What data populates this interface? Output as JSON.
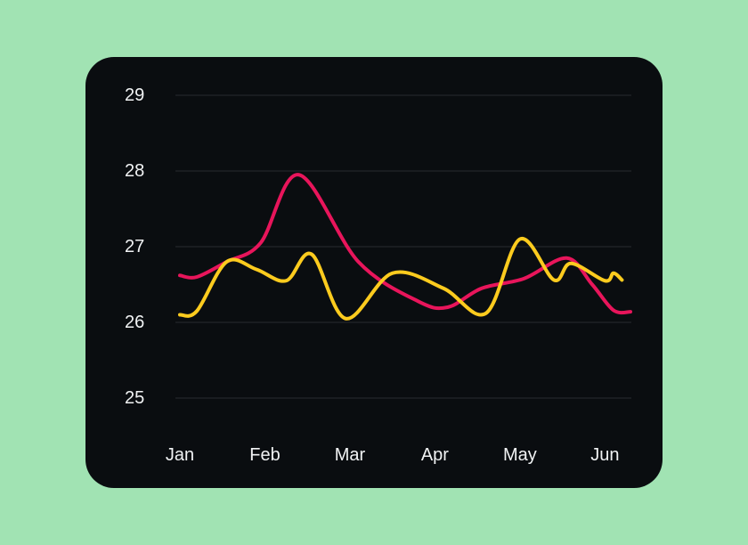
{
  "chart_data": {
    "type": "line",
    "title": "",
    "xlabel": "",
    "ylabel": "",
    "categories": [
      "Jan",
      "Feb",
      "Mar",
      "Apr",
      "May",
      "Jun"
    ],
    "y_ticks": [
      25,
      26,
      27,
      28,
      29
    ],
    "ylim": [
      25,
      29
    ],
    "xlim": [
      0,
      5.3
    ],
    "grid": true,
    "legend": "none",
    "series": [
      {
        "color": "#e8155b",
        "points": [
          {
            "x": 0.0,
            "y": 26.62
          },
          {
            "x": 0.2,
            "y": 26.6
          },
          {
            "x": 0.55,
            "y": 26.8
          },
          {
            "x": 0.95,
            "y": 27.05
          },
          {
            "x": 1.4,
            "y": 27.95
          },
          {
            "x": 2.1,
            "y": 26.8
          },
          {
            "x": 2.8,
            "y": 26.28
          },
          {
            "x": 3.15,
            "y": 26.2
          },
          {
            "x": 3.55,
            "y": 26.45
          },
          {
            "x": 4.05,
            "y": 26.58
          },
          {
            "x": 4.55,
            "y": 26.85
          },
          {
            "x": 4.85,
            "y": 26.5
          },
          {
            "x": 5.1,
            "y": 26.16
          },
          {
            "x": 5.3,
            "y": 26.14
          }
        ]
      },
      {
        "color": "#fccb1e",
        "points": [
          {
            "x": 0.0,
            "y": 26.1
          },
          {
            "x": 0.2,
            "y": 26.15
          },
          {
            "x": 0.55,
            "y": 26.8
          },
          {
            "x": 0.9,
            "y": 26.7
          },
          {
            "x": 1.25,
            "y": 26.55
          },
          {
            "x": 1.55,
            "y": 26.9
          },
          {
            "x": 1.95,
            "y": 26.05
          },
          {
            "x": 2.5,
            "y": 26.65
          },
          {
            "x": 3.1,
            "y": 26.45
          },
          {
            "x": 3.6,
            "y": 26.12
          },
          {
            "x": 4.0,
            "y": 27.1
          },
          {
            "x": 4.4,
            "y": 26.56
          },
          {
            "x": 4.6,
            "y": 26.78
          },
          {
            "x": 5.0,
            "y": 26.55
          },
          {
            "x": 5.1,
            "y": 26.65
          },
          {
            "x": 5.2,
            "y": 26.56
          }
        ]
      }
    ]
  }
}
